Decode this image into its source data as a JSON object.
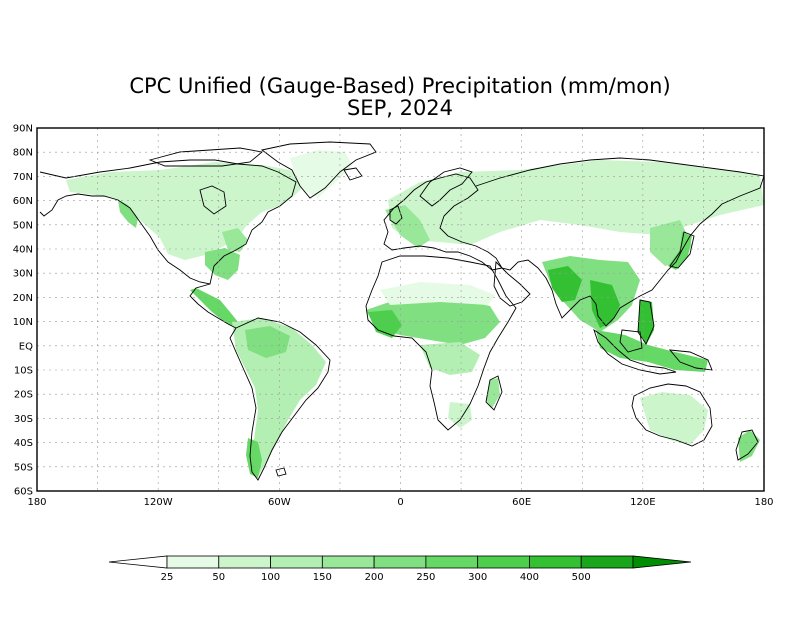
{
  "title": "CPC Unified (Gauge-Based) Precipitation (mm/mon)",
  "subtitle": "SEP, 2024",
  "lat_labels": [
    "90N",
    "80N",
    "70N",
    "60N",
    "50N",
    "40N",
    "30N",
    "20N",
    "10N",
    "EQ",
    "10S",
    "20S",
    "30S",
    "40S",
    "50S",
    "60S"
  ],
  "lon_labels": [
    "180",
    "120W",
    "60W",
    "0",
    "60E",
    "120E",
    "180"
  ],
  "colorbar": {
    "labels": [
      "25",
      "50",
      "100",
      "150",
      "200",
      "250",
      "300",
      "400",
      "500"
    ],
    "colors": [
      "#ffffff",
      "#e6fbe6",
      "#ccf5cc",
      "#b3efb3",
      "#99e799",
      "#80df80",
      "#66d866",
      "#4dcf4d",
      "#33c033",
      "#1aa61a",
      "#008f00"
    ]
  },
  "colors": {
    "ocean": "#ffffff",
    "land_dry": "#ffffff",
    "coast": "#000000",
    "grid": "#9a9a9a"
  }
}
